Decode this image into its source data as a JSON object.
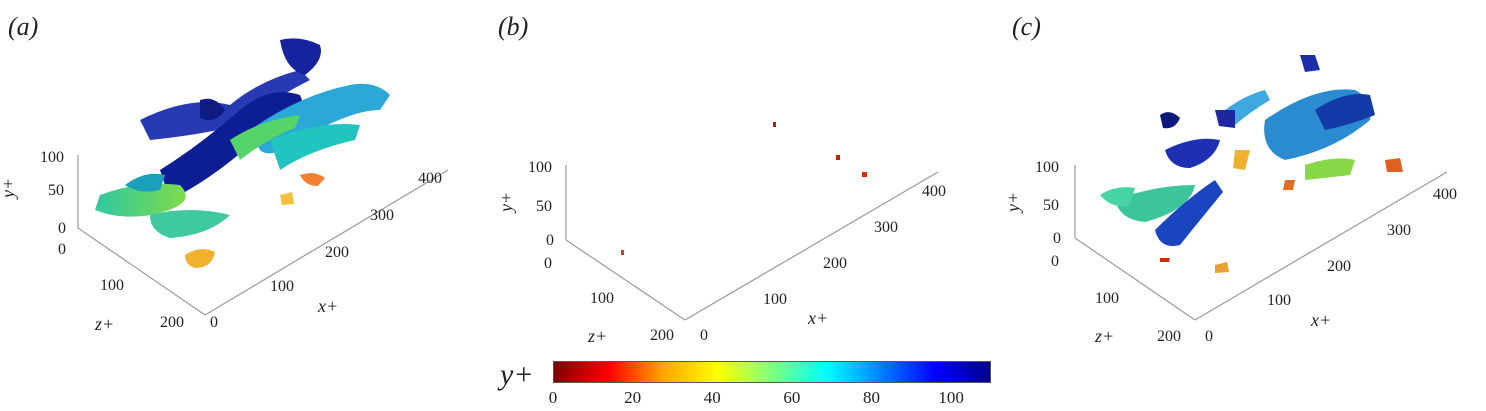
{
  "panels": [
    {
      "label": "(a)",
      "y_axis": "y+",
      "x_axis": "x+",
      "z_axis": "z+",
      "y_ticks": [
        "0",
        "50",
        "100"
      ],
      "z_ticks": [
        "0",
        "100",
        "200"
      ],
      "x_ticks": [
        "0",
        "100",
        "200",
        "300",
        "400"
      ]
    },
    {
      "label": "(b)",
      "y_axis": "y+",
      "x_axis": "x+",
      "z_axis": "z+",
      "y_ticks": [
        "0",
        "50",
        "100"
      ],
      "z_ticks": [
        "0",
        "100",
        "200"
      ],
      "x_ticks": [
        "0",
        "100",
        "200",
        "300",
        "400"
      ]
    },
    {
      "label": "(c)",
      "y_axis": "y+",
      "x_axis": "x+",
      "z_axis": "z+",
      "y_ticks": [
        "0",
        "50",
        "100"
      ],
      "z_ticks": [
        "0",
        "100",
        "200"
      ],
      "x_ticks": [
        "0",
        "100",
        "200",
        "300",
        "400"
      ]
    }
  ],
  "colorbar": {
    "label": "y+",
    "ticks": [
      "0",
      "20",
      "40",
      "60",
      "80",
      "100"
    ],
    "range": [
      0,
      110
    ],
    "colors": [
      "#7f0000",
      "#ff0000",
      "#ffa500",
      "#ffff00",
      "#7fff7f",
      "#00ffff",
      "#0080ff",
      "#0000ff",
      "#00008f"
    ]
  }
}
